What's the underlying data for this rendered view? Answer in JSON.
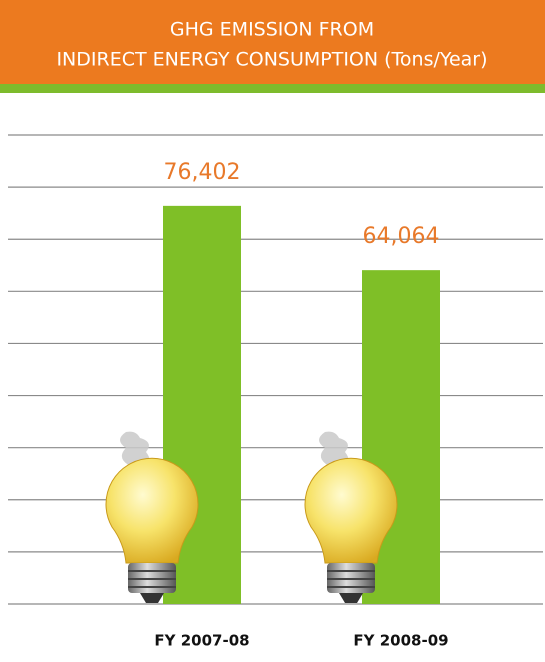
{
  "chart_data": {
    "type": "bar",
    "title": [
      "GHG EMISSION FROM",
      "INDIRECT ENERGY CONSUMPTION (Tons/Year)"
    ],
    "categories": [
      "FY 2007-08",
      "FY 2008-09"
    ],
    "values": [
      76402,
      64064
    ],
    "value_labels": [
      "76,402",
      "64,064"
    ],
    "color": "#7fbf27",
    "label_color": "#e8792a",
    "ylim": [
      0,
      90000
    ],
    "yticks": [
      0,
      10000,
      20000,
      30000,
      40000,
      50000,
      60000,
      70000,
      80000,
      90000
    ],
    "grid": true
  }
}
